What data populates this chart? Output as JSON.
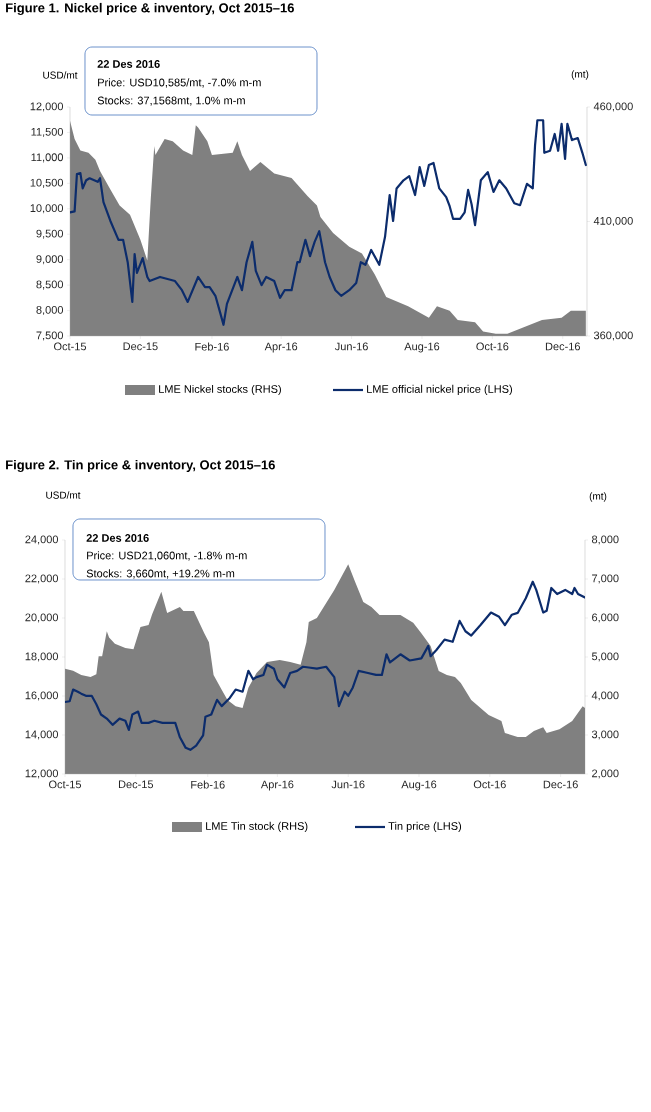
{
  "chart_data": [
    {
      "type": "line",
      "title": "Figure 1. Nickel price & inventory, Oct 2015–16",
      "ylabel": "USD/mt",
      "y2label": "(mt)",
      "legend": "bottom",
      "annotations": [
        "22 Des 2016",
        "Price: USD10,585/mt, -7.0% m-m",
        "Stocks: 37,1568mt, 1.0% m-m"
      ],
      "xlim": [
        "2015-10-01",
        "2016-12-22"
      ],
      "xticks": [
        {
          "value": "2015-10",
          "label": "Oct-15"
        },
        {
          "value": "2015-12",
          "label": "Dec-15"
        },
        {
          "value": "2016-02",
          "label": "Feb-16"
        },
        {
          "value": "2016-04",
          "label": "Apr-16"
        },
        {
          "value": "2016-06",
          "label": "Jun-16"
        },
        {
          "value": "2016-08",
          "label": "Aug-16"
        },
        {
          "value": "2016-10",
          "label": "Oct-16"
        },
        {
          "value": "2016-12",
          "label": "Dec-16"
        }
      ],
      "ylim": [
        7500,
        12000
      ],
      "yticks": [
        {
          "value": 7500,
          "label": "7,500"
        },
        {
          "value": 8000,
          "label": "8,000"
        },
        {
          "value": 8500,
          "label": "8,500"
        },
        {
          "value": 9000,
          "label": "9,000"
        },
        {
          "value": 9500,
          "label": "9,500"
        },
        {
          "value": 10000,
          "label": "10,000"
        },
        {
          "value": 10500,
          "label": "10,500"
        },
        {
          "value": 11000,
          "label": "11,000"
        },
        {
          "value": 11500,
          "label": "11,500"
        },
        {
          "value": 12000,
          "label": "12,000"
        }
      ],
      "y2lim": [
        360000,
        460000
      ],
      "y2ticks": [
        {
          "value": 360000,
          "label": "360,000"
        },
        {
          "value": 410000,
          "label": "410,000"
        },
        {
          "value": 460000,
          "label": "460,000"
        }
      ],
      "series": [
        {
          "name": "LME Nickel stocks (RHS)",
          "type": "area",
          "axis": "y2",
          "color": "#808080",
          "x": [
            "2015-10-01",
            "2015-10-05",
            "2015-10-10",
            "2015-10-17",
            "2015-10-23",
            "2015-10-27",
            "2015-11-05",
            "2015-11-13",
            "2015-11-22",
            "2015-12-01",
            "2015-12-07",
            "2015-12-10",
            "2015-12-13",
            "2015-12-14",
            "2015-12-22",
            "2015-12-29",
            "2016-01-07",
            "2016-01-15",
            "2016-01-18",
            "2016-01-20",
            "2016-01-28",
            "2016-02-01",
            "2016-02-19",
            "2016-02-23",
            "2016-02-27",
            "2016-03-05",
            "2016-03-14",
            "2016-03-26",
            "2016-04-10",
            "2016-04-24",
            "2016-05-02",
            "2016-05-05",
            "2016-05-16",
            "2016-05-30",
            "2016-06-10",
            "2016-06-21",
            "2016-07-01",
            "2016-07-20",
            "2016-08-07",
            "2016-08-14",
            "2016-08-25",
            "2016-09-01",
            "2016-09-16",
            "2016-09-23",
            "2016-10-04",
            "2016-10-14",
            "2016-10-29",
            "2016-11-13",
            "2016-11-30",
            "2016-12-08",
            "2016-12-21"
          ],
          "values": [
            454000,
            446000,
            441000,
            440000,
            437000,
            432000,
            424000,
            417000,
            413000,
            402000,
            393000,
            420000,
            443000,
            439000,
            446000,
            445000,
            441000,
            439000,
            452000,
            451000,
            445000,
            439000,
            440000,
            445000,
            439000,
            432000,
            436000,
            431000,
            429000,
            421000,
            417000,
            412000,
            405000,
            399000,
            396000,
            387000,
            377000,
            373000,
            368000,
            373000,
            371000,
            367000,
            366000,
            362000,
            361000,
            361000,
            364000,
            367000,
            368000,
            371000,
            371000
          ]
        },
        {
          "name": "LME official nickel price (LHS)",
          "type": "line",
          "color": "#0c2c6c",
          "x": [
            "2015-10-01",
            "2015-10-05",
            "2015-10-07",
            "2015-10-10",
            "2015-10-12",
            "2015-10-15",
            "2015-10-18",
            "2015-10-25",
            "2015-10-27",
            "2015-10-30",
            "2015-11-05",
            "2015-11-12",
            "2015-11-16",
            "2015-11-20",
            "2015-11-24",
            "2015-11-26",
            "2015-11-28",
            "2015-12-03",
            "2015-12-07",
            "2015-12-09",
            "2015-12-18",
            "2015-12-31",
            "2016-01-06",
            "2016-01-11",
            "2016-01-20",
            "2016-01-26",
            "2016-01-30",
            "2016-02-04",
            "2016-02-08",
            "2016-02-11",
            "2016-02-14",
            "2016-02-23",
            "2016-02-27",
            "2016-03-02",
            "2016-03-07",
            "2016-03-10",
            "2016-03-15",
            "2016-03-19",
            "2016-03-26",
            "2016-03-31",
            "2016-04-04",
            "2016-04-10",
            "2016-04-15",
            "2016-04-17",
            "2016-04-22",
            "2016-04-26",
            "2016-04-30",
            "2016-05-04",
            "2016-05-09",
            "2016-05-13",
            "2016-05-18",
            "2016-05-23",
            "2016-05-30",
            "2016-06-05",
            "2016-06-09",
            "2016-06-13",
            "2016-06-18",
            "2016-06-25",
            "2016-06-30",
            "2016-07-04",
            "2016-07-07",
            "2016-07-10",
            "2016-07-16",
            "2016-07-21",
            "2016-07-26",
            "2016-07-30",
            "2016-08-03",
            "2016-08-07",
            "2016-08-11",
            "2016-08-16",
            "2016-08-22",
            "2016-08-25",
            "2016-08-28",
            "2016-09-03",
            "2016-09-07",
            "2016-09-10",
            "2016-09-13",
            "2016-09-16",
            "2016-09-21",
            "2016-09-27",
            "2016-10-02",
            "2016-10-07",
            "2016-10-13",
            "2016-10-20",
            "2016-10-25",
            "2016-10-31",
            "2016-11-05",
            "2016-11-07",
            "2016-11-09",
            "2016-11-14",
            "2016-11-15",
            "2016-11-20",
            "2016-11-24",
            "2016-11-27",
            "2016-11-30",
            "2016-12-03",
            "2016-12-05",
            "2016-12-09",
            "2016-12-14",
            "2016-12-18",
            "2016-12-21"
          ],
          "values": [
            9930,
            9950,
            10680,
            10700,
            10400,
            10560,
            10600,
            10530,
            10600,
            10130,
            9760,
            9390,
            9390,
            8950,
            8170,
            9110,
            8740,
            9030,
            8660,
            8580,
            8660,
            8580,
            8400,
            8170,
            8660,
            8460,
            8460,
            8290,
            7970,
            7720,
            8130,
            8660,
            8400,
            8950,
            9350,
            8780,
            8500,
            8660,
            8580,
            8250,
            8400,
            8400,
            8950,
            8950,
            9390,
            9070,
            9350,
            9560,
            8950,
            8660,
            8400,
            8290,
            8400,
            8540,
            8950,
            8900,
            9190,
            8900,
            9450,
            10270,
            9760,
            10400,
            10560,
            10640,
            10270,
            10820,
            10450,
            10860,
            10900,
            10400,
            10230,
            10050,
            9800,
            9800,
            9930,
            10370,
            10090,
            9680,
            10560,
            10720,
            10330,
            10560,
            10400,
            10110,
            10070,
            10490,
            10400,
            11250,
            11740,
            11740,
            11100,
            11140,
            11470,
            11140,
            11670,
            10980,
            11670,
            11350,
            11390,
            11100,
            10860
          ]
        }
      ]
    },
    {
      "type": "line",
      "title": "Figure 2. Tin price & inventory, Oct 2015–16",
      "ylabel": "USD/mt",
      "y2label": "(mt)",
      "legend": "bottom",
      "annotations": [
        "22 Des 2016",
        "Price: USD21,060mt, -1.8% m-m",
        "Stocks: 3,660mt, +19.2% m-m"
      ],
      "xlim": [
        "2015-10-01",
        "2016-12-22"
      ],
      "xticks": [
        {
          "value": "2015-10",
          "label": "Oct-15"
        },
        {
          "value": "2015-12",
          "label": "Dec-15"
        },
        {
          "value": "2016-02",
          "label": "Feb-16"
        },
        {
          "value": "2016-04",
          "label": "Apr-16"
        },
        {
          "value": "2016-06",
          "label": "Jun-16"
        },
        {
          "value": "2016-08",
          "label": "Aug-16"
        },
        {
          "value": "2016-10",
          "label": "Oct-16"
        },
        {
          "value": "2016-12",
          "label": "Dec-16"
        }
      ],
      "ylim": [
        12000,
        24000
      ],
      "yticks": [
        {
          "value": 12000,
          "label": "12,000"
        },
        {
          "value": 14000,
          "label": "14,000"
        },
        {
          "value": 16000,
          "label": "16,000"
        },
        {
          "value": 18000,
          "label": "18,000"
        },
        {
          "value": 20000,
          "label": "20,000"
        },
        {
          "value": 22000,
          "label": "22,000"
        },
        {
          "value": 24000,
          "label": "24,000"
        }
      ],
      "y2lim": [
        2000,
        8000
      ],
      "y2ticks": [
        {
          "value": 2000,
          "label": "2,000"
        },
        {
          "value": 3000,
          "label": "3,000"
        },
        {
          "value": 4000,
          "label": "4,000"
        },
        {
          "value": 5000,
          "label": "5,000"
        },
        {
          "value": 6000,
          "label": "6,000"
        },
        {
          "value": 7000,
          "label": "7,000"
        },
        {
          "value": 8000,
          "label": "8,000"
        }
      ],
      "series": [
        {
          "name": "LME Tin stock (RHS)",
          "type": "area",
          "axis": "y2",
          "color": "#808080",
          "x": [
            "2015-10-01",
            "2015-10-08",
            "2015-10-15",
            "2015-10-23",
            "2015-10-28",
            "2015-10-30",
            "2015-11-02",
            "2015-11-06",
            "2015-11-08",
            "2015-11-13",
            "2015-11-22",
            "2015-11-29",
            "2015-12-05",
            "2015-12-12",
            "2015-12-15",
            "2015-12-23",
            "2015-12-28",
            "2016-01-08",
            "2016-01-11",
            "2016-01-20",
            "2016-01-29",
            "2016-02-02",
            "2016-02-06",
            "2016-02-13",
            "2016-02-18",
            "2016-02-25",
            "2016-03-02",
            "2016-03-07",
            "2016-03-14",
            "2016-03-23",
            "2016-04-03",
            "2016-04-12",
            "2016-04-21",
            "2016-04-26",
            "2016-04-28",
            "2016-05-05",
            "2016-05-20",
            "2016-06-01",
            "2016-06-07",
            "2016-06-14",
            "2016-06-21",
            "2016-06-28",
            "2016-07-16",
            "2016-07-22",
            "2016-07-27",
            "2016-08-03",
            "2016-08-11",
            "2016-08-18",
            "2016-08-25",
            "2016-09-01",
            "2016-09-06",
            "2016-09-15",
            "2016-09-23",
            "2016-09-30",
            "2016-10-11",
            "2016-10-14",
            "2016-10-25",
            "2016-11-01",
            "2016-11-08",
            "2016-11-16",
            "2016-11-19",
            "2016-11-30",
            "2016-12-11",
            "2016-12-20",
            "2016-12-22"
          ],
          "values": [
            4700,
            4650,
            4540,
            4490,
            4560,
            5020,
            5020,
            5660,
            5500,
            5340,
            5230,
            5200,
            5770,
            5820,
            6090,
            6670,
            6130,
            6280,
            6180,
            6180,
            5610,
            5380,
            4540,
            4160,
            3900,
            3740,
            3690,
            4210,
            4590,
            4870,
            4920,
            4870,
            4800,
            5380,
            5900,
            6000,
            6720,
            7380,
            6920,
            6410,
            6280,
            6080,
            6080,
            5970,
            5880,
            5610,
            5280,
            4640,
            4540,
            4490,
            4330,
            3900,
            3690,
            3510,
            3360,
            3050,
            2950,
            2950,
            3100,
            3200,
            3050,
            3150,
            3360,
            3740,
            3690
          ]
        },
        {
          "name": "Tin price (LHS)",
          "type": "line",
          "color": "#0c2c6c",
          "x": [
            "2015-10-01",
            "2015-10-05",
            "2015-10-08",
            "2015-10-12",
            "2015-10-15",
            "2015-10-19",
            "2015-10-24",
            "2015-10-28",
            "2015-11-01",
            "2015-11-06",
            "2015-11-11",
            "2015-11-17",
            "2015-11-22",
            "2015-11-25",
            "2015-11-28",
            "2015-12-03",
            "2015-12-06",
            "2015-12-12",
            "2015-12-17",
            "2015-12-24",
            "2016-01-04",
            "2016-01-08",
            "2016-01-13",
            "2016-01-17",
            "2016-01-22",
            "2016-01-28",
            "2016-01-30",
            "2016-02-04",
            "2016-02-09",
            "2016-02-13",
            "2016-02-20",
            "2016-02-25",
            "2016-03-02",
            "2016-03-07",
            "2016-03-11",
            "2016-03-14",
            "2016-03-20",
            "2016-03-23",
            "2016-03-29",
            "2016-04-01",
            "2016-04-07",
            "2016-04-12",
            "2016-04-18",
            "2016-04-23",
            "2016-04-28",
            "2016-05-05",
            "2016-05-13",
            "2016-05-20",
            "2016-05-24",
            "2016-05-29",
            "2016-06-01",
            "2016-06-05",
            "2016-06-10",
            "2016-06-18",
            "2016-06-25",
            "2016-06-30",
            "2016-07-04",
            "2016-07-07",
            "2016-07-16",
            "2016-07-24",
            "2016-08-03",
            "2016-08-09",
            "2016-08-11",
            "2016-08-16",
            "2016-08-23",
            "2016-08-30",
            "2016-09-05",
            "2016-09-10",
            "2016-09-15",
            "2016-09-23",
            "2016-10-02",
            "2016-10-09",
            "2016-10-14",
            "2016-10-20",
            "2016-10-25",
            "2016-11-01",
            "2016-11-07",
            "2016-11-10",
            "2016-11-16",
            "2016-11-19",
            "2016-11-23",
            "2016-11-28",
            "2016-12-05",
            "2016-12-11",
            "2016-12-13",
            "2016-12-16",
            "2016-12-22"
          ],
          "values": [
            15690,
            15730,
            16330,
            16220,
            16120,
            16010,
            16010,
            15580,
            15050,
            14840,
            14520,
            14840,
            14730,
            14260,
            15050,
            15200,
            14620,
            14620,
            14730,
            14620,
            14620,
            13880,
            13340,
            13240,
            13450,
            13980,
            14940,
            15050,
            15800,
            15480,
            15900,
            16330,
            16220,
            17290,
            16860,
            16970,
            17080,
            17610,
            17400,
            16860,
            16440,
            17180,
            17290,
            17500,
            17460,
            17400,
            17500,
            16970,
            15480,
            16220,
            16010,
            16440,
            17290,
            17180,
            17080,
            17080,
            18140,
            17720,
            18140,
            17820,
            17930,
            18570,
            18040,
            18360,
            18890,
            18780,
            19850,
            19320,
            19100,
            19640,
            20280,
            20060,
            19640,
            20170,
            20260,
            21010,
            21860,
            21440,
            20280,
            20370,
            21540,
            21230,
            21440,
            21230,
            21540,
            21230,
            21050
          ]
        }
      ]
    }
  ]
}
